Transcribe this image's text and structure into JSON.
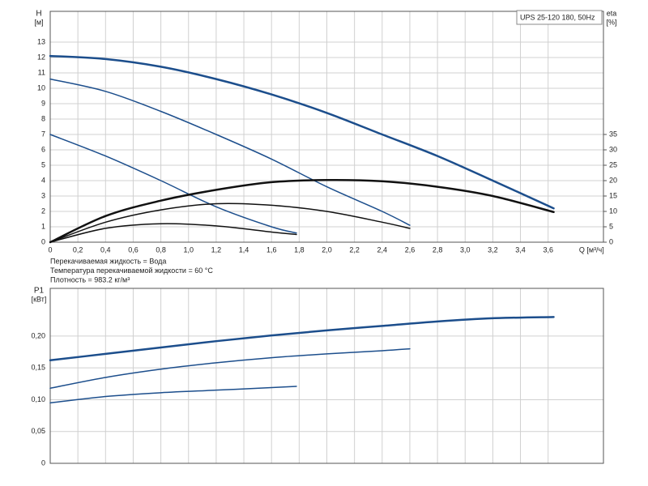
{
  "chart_data": [
    {
      "type": "line",
      "title": "UPS 25-120 180, 50Hz",
      "ylabel": "H",
      "ylabel_unit": "[м]",
      "y2label": "eta",
      "y2label_unit": "[%]",
      "xlabel": "Q [м³/ч]",
      "annotations": [
        "Перекачиваемая жидкость = Вода",
        "Температура перекачиваемой жидкости = 60 °C",
        "Плотность = 983.2 кг/м³"
      ],
      "xlim": [
        0,
        4.0
      ],
      "ylim": [
        0,
        15
      ],
      "y2lim": [
        0,
        75
      ],
      "grid": true,
      "xticks": [
        0,
        {
          "value": 0.2,
          "label": "0,2"
        },
        {
          "value": 0.4,
          "label": "0,4"
        },
        {
          "value": 0.6,
          "label": "0,6"
        },
        {
          "value": 0.8,
          "label": "0,8"
        },
        {
          "value": 1.0,
          "label": "1,0"
        },
        {
          "value": 1.2,
          "label": "1,2"
        },
        {
          "value": 1.4,
          "label": "1,4"
        },
        {
          "value": 1.6,
          "label": "1,6"
        },
        {
          "value": 1.8,
          "label": "1,8"
        },
        {
          "value": 2.0,
          "label": "2,0"
        },
        {
          "value": 2.2,
          "label": "2,2"
        },
        {
          "value": 2.4,
          "label": "2,4"
        },
        {
          "value": 2.6,
          "label": "2,6"
        },
        {
          "value": 2.8,
          "label": "2,8"
        },
        {
          "value": 3.0,
          "label": "3,0"
        },
        {
          "value": 3.2,
          "label": "3,2"
        },
        {
          "value": 3.4,
          "label": "3,4"
        },
        {
          "value": 3.6,
          "label": "3,6"
        }
      ],
      "yticks": [
        0,
        1,
        2,
        3,
        4,
        5,
        6,
        7,
        8,
        9,
        10,
        11,
        12,
        13
      ],
      "y2ticks": [
        0,
        5,
        10,
        15,
        20,
        25,
        30,
        35
      ],
      "series": [
        {
          "color": "#1c4e8c",
          "width": 2.5,
          "x": [
            0,
            0.4,
            0.8,
            1.2,
            1.6,
            2.0,
            2.4,
            2.8,
            3.2,
            3.64
          ],
          "values": [
            12.1,
            11.9,
            11.4,
            10.6,
            9.6,
            8.4,
            7.0,
            5.6,
            4.0,
            2.2
          ]
        },
        {
          "color": "#1c4e8c",
          "width": 1.5,
          "x": [
            0,
            0.4,
            0.8,
            1.2,
            1.6,
            2.0,
            2.4,
            2.6
          ],
          "values": [
            10.6,
            9.8,
            8.5,
            7.0,
            5.4,
            3.6,
            2.0,
            1.1
          ]
        },
        {
          "color": "#1c4e8c",
          "width": 1.5,
          "x": [
            0,
            0.4,
            0.8,
            1.2,
            1.6,
            1.78
          ],
          "values": [
            7.0,
            5.6,
            4.0,
            2.3,
            1.0,
            0.6
          ]
        },
        {
          "color": "#111111",
          "width": 2.5,
          "axis": "y2",
          "x": [
            0,
            0.4,
            0.8,
            1.2,
            1.6,
            2.0,
            2.4,
            2.8,
            3.2,
            3.64
          ],
          "values": [
            0,
            8.5,
            13.5,
            17,
            19.5,
            20.2,
            19.8,
            18,
            15,
            9.8
          ]
        },
        {
          "color": "#111111",
          "width": 1.5,
          "axis": "y2",
          "x": [
            0,
            0.4,
            0.8,
            1.2,
            1.6,
            2.0,
            2.4,
            2.6
          ],
          "values": [
            0,
            6.5,
            10.5,
            12.5,
            12,
            10,
            6.5,
            4.5
          ]
        },
        {
          "color": "#111111",
          "width": 1.5,
          "axis": "y2",
          "x": [
            0,
            0.4,
            0.8,
            1.2,
            1.6,
            1.78
          ],
          "values": [
            0,
            4.5,
            6,
            5.3,
            3.3,
            2.5
          ]
        }
      ]
    },
    {
      "type": "line",
      "ylabel": "P1",
      "ylabel_unit": "[кВт]",
      "xlim": [
        0,
        4.0
      ],
      "ylim": [
        0,
        0.275
      ],
      "grid": true,
      "yticks": [
        0,
        {
          "value": 0.05,
          "label": "0,05"
        },
        {
          "value": 0.1,
          "label": "0,10"
        },
        {
          "value": 0.15,
          "label": "0,15"
        },
        {
          "value": 0.2,
          "label": "0,20"
        }
      ],
      "series": [
        {
          "color": "#1c4e8c",
          "width": 2.5,
          "x": [
            0,
            0.4,
            0.8,
            1.2,
            1.6,
            2.0,
            2.4,
            2.8,
            3.2,
            3.64
          ],
          "values": [
            0.162,
            0.172,
            0.182,
            0.192,
            0.201,
            0.209,
            0.216,
            0.223,
            0.228,
            0.23
          ]
        },
        {
          "color": "#1c4e8c",
          "width": 1.5,
          "x": [
            0,
            0.4,
            0.8,
            1.2,
            1.6,
            2.0,
            2.4,
            2.6
          ],
          "values": [
            0.118,
            0.135,
            0.148,
            0.158,
            0.166,
            0.172,
            0.177,
            0.18
          ]
        },
        {
          "color": "#1c4e8c",
          "width": 1.5,
          "x": [
            0,
            0.4,
            0.8,
            1.2,
            1.6,
            1.78
          ],
          "values": [
            0.095,
            0.105,
            0.111,
            0.115,
            0.119,
            0.121
          ]
        }
      ]
    }
  ]
}
